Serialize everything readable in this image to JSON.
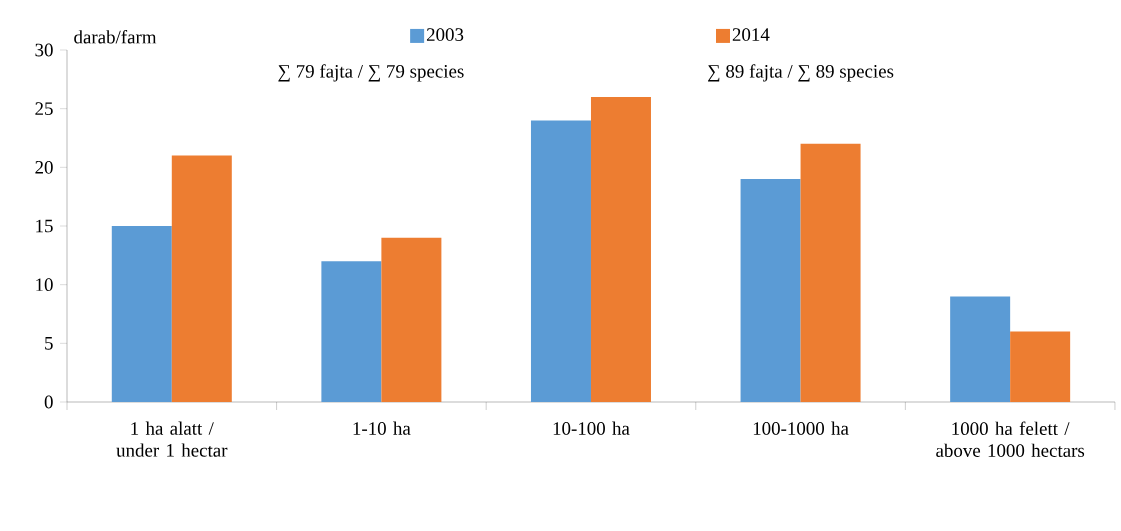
{
  "chart_data": {
    "type": "bar",
    "ylabel": "darab/farm",
    "categories": [
      "1 ha alatt / under 1 hectar",
      "1-10 ha",
      "10-100 ha",
      "100-1000 ha",
      "1000 ha felett / above 1000 hectars"
    ],
    "series": [
      {
        "name": "2003",
        "color": "#5b9bd5",
        "values": [
          15,
          12,
          24,
          19,
          9
        ]
      },
      {
        "name": "2014",
        "color": "#ed7d31",
        "values": [
          21,
          14,
          26,
          22,
          6
        ]
      }
    ],
    "ylim": [
      0,
      30
    ],
    "yticks": [
      0,
      5,
      10,
      15,
      20,
      25,
      30
    ],
    "annotations": [
      "∑ 79 fajta / ∑ 79 species",
      "∑ 89 fajta / ∑ 89 species"
    ],
    "legend": "top",
    "grid": false
  }
}
